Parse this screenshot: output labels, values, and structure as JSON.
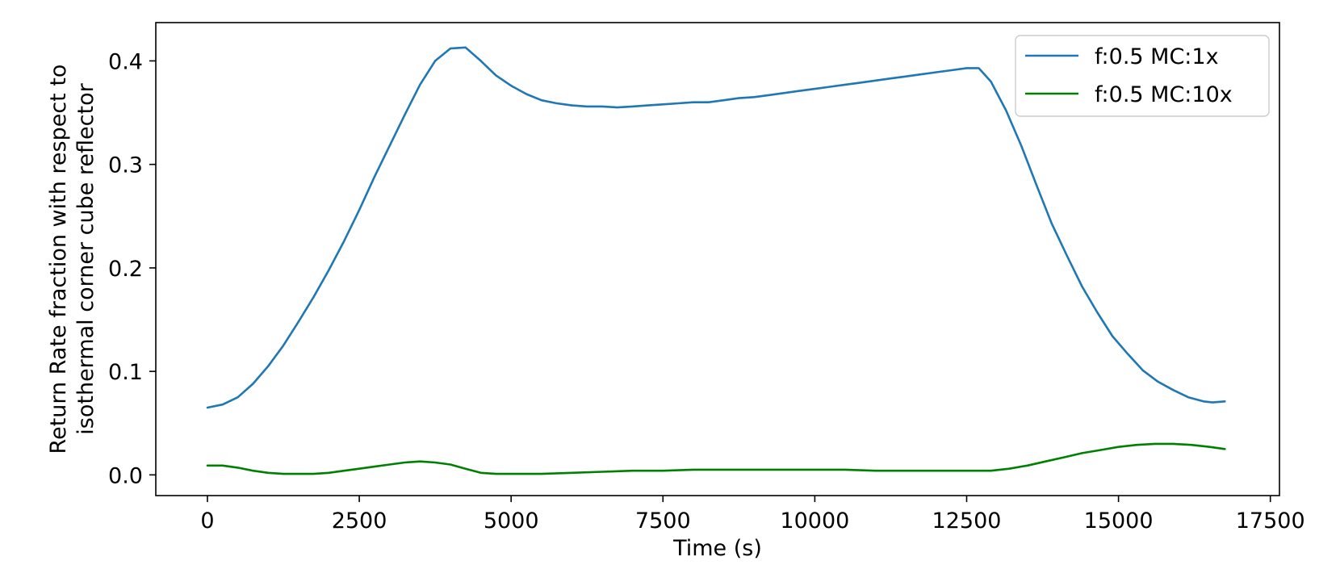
{
  "chart_data": {
    "type": "line",
    "title": "",
    "xlabel": "Time (s)",
    "ylabel": [
      "Return Rate fraction with respect to",
      "isothermal corner cube reflector"
    ],
    "xlim": [
      -850,
      17650
    ],
    "ylim": [
      -0.02,
      0.437
    ],
    "x_ticks": [
      0,
      2500,
      5000,
      7500,
      10000,
      12500,
      15000,
      17500
    ],
    "x_tick_labels": [
      "0",
      "2500",
      "5000",
      "7500",
      "10000",
      "12500",
      "15000",
      "17500"
    ],
    "y_ticks": [
      0.0,
      0.1,
      0.2,
      0.3,
      0.4
    ],
    "y_tick_labels": [
      "0.0",
      "0.1",
      "0.2",
      "0.3",
      "0.4"
    ],
    "grid": false,
    "legend_position": "top-right",
    "series": [
      {
        "name": "f:0.5 MC:1x",
        "color": "#1f77b4",
        "x": [
          0,
          250,
          500,
          750,
          1000,
          1250,
          1500,
          1750,
          2000,
          2250,
          2500,
          2750,
          3000,
          3250,
          3500,
          3750,
          4000,
          4250,
          4500,
          4750,
          5000,
          5250,
          5500,
          5750,
          6000,
          6250,
          6500,
          6750,
          7000,
          7250,
          7500,
          7750,
          8000,
          8250,
          8500,
          8750,
          9000,
          9250,
          9500,
          9750,
          10000,
          10250,
          10500,
          10750,
          11000,
          11250,
          11500,
          11750,
          12000,
          12250,
          12500,
          12700,
          12900,
          13150,
          13400,
          13650,
          13900,
          14150,
          14400,
          14650,
          14900,
          15150,
          15400,
          15650,
          15900,
          16150,
          16400,
          16550,
          16750
        ],
        "y": [
          0.065,
          0.068,
          0.075,
          0.088,
          0.105,
          0.125,
          0.148,
          0.172,
          0.198,
          0.226,
          0.256,
          0.288,
          0.318,
          0.348,
          0.377,
          0.4,
          0.412,
          0.413,
          0.4,
          0.386,
          0.376,
          0.368,
          0.362,
          0.359,
          0.357,
          0.356,
          0.356,
          0.355,
          0.356,
          0.357,
          0.358,
          0.359,
          0.36,
          0.36,
          0.362,
          0.364,
          0.365,
          0.367,
          0.369,
          0.371,
          0.373,
          0.375,
          0.377,
          0.379,
          0.381,
          0.383,
          0.385,
          0.387,
          0.389,
          0.391,
          0.393,
          0.393,
          0.38,
          0.352,
          0.318,
          0.28,
          0.243,
          0.212,
          0.182,
          0.157,
          0.134,
          0.117,
          0.101,
          0.09,
          0.082,
          0.075,
          0.071,
          0.07,
          0.071
        ]
      },
      {
        "name": "f:0.5 MC:10x",
        "color": "#008000",
        "x": [
          0,
          250,
          500,
          750,
          1000,
          1250,
          1500,
          1750,
          2000,
          2250,
          2500,
          2750,
          3000,
          3250,
          3500,
          3750,
          4000,
          4250,
          4500,
          4750,
          5000,
          5500,
          6000,
          6500,
          7000,
          7500,
          8000,
          8500,
          9000,
          9500,
          10000,
          10500,
          11000,
          11500,
          12000,
          12500,
          12900,
          13200,
          13500,
          13800,
          14100,
          14400,
          14700,
          15000,
          15300,
          15600,
          15900,
          16200,
          16500,
          16750
        ],
        "y": [
          0.009,
          0.009,
          0.007,
          0.004,
          0.002,
          0.001,
          0.001,
          0.001,
          0.002,
          0.004,
          0.006,
          0.008,
          0.01,
          0.012,
          0.013,
          0.012,
          0.01,
          0.006,
          0.002,
          0.001,
          0.001,
          0.001,
          0.002,
          0.003,
          0.004,
          0.004,
          0.005,
          0.005,
          0.005,
          0.005,
          0.005,
          0.005,
          0.004,
          0.004,
          0.004,
          0.004,
          0.004,
          0.006,
          0.009,
          0.013,
          0.017,
          0.021,
          0.024,
          0.027,
          0.029,
          0.03,
          0.03,
          0.029,
          0.027,
          0.025
        ]
      }
    ]
  }
}
